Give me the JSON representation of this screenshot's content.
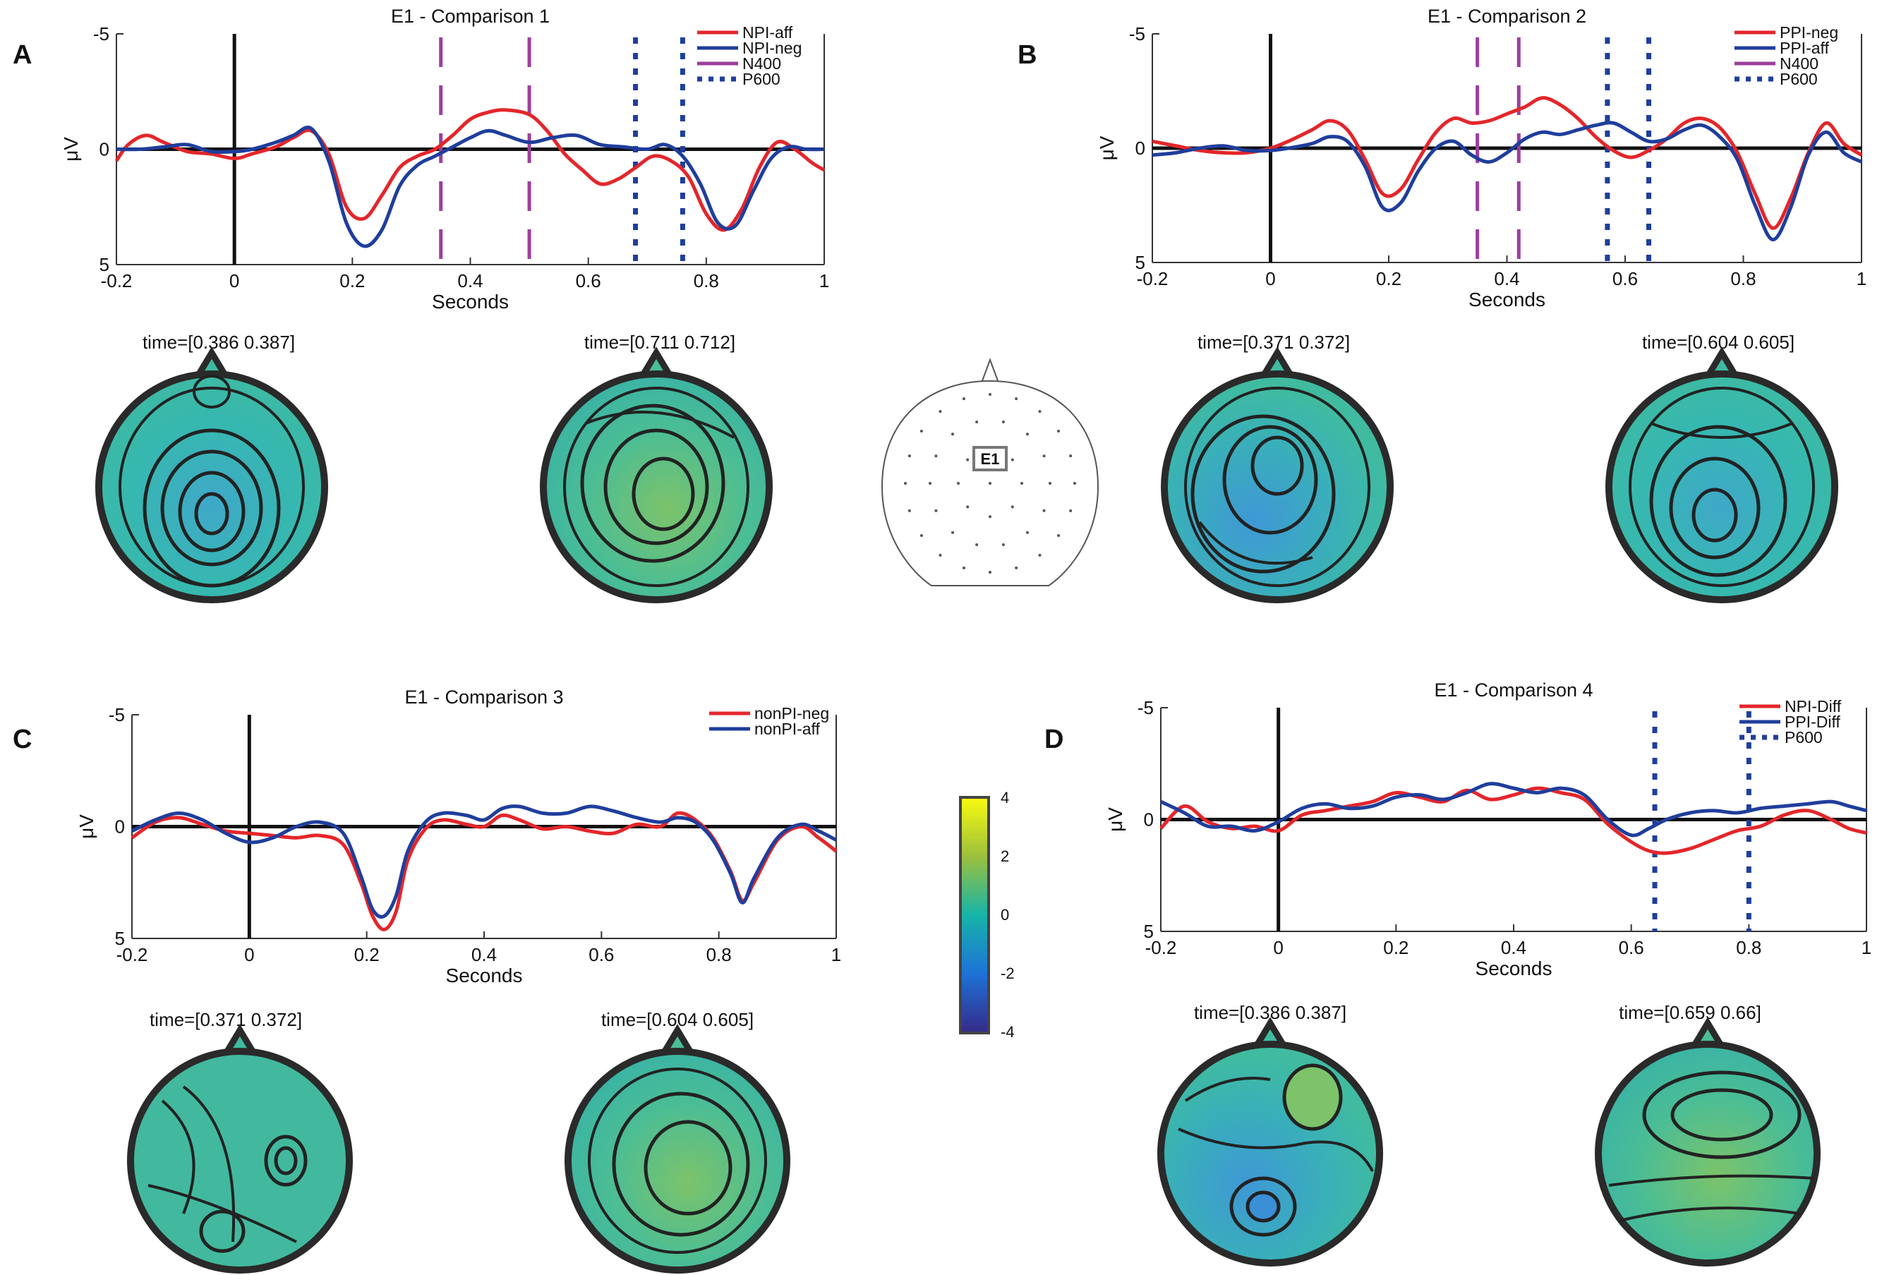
{
  "chart_data": [
    {
      "type": "line",
      "panel_label": "A",
      "title": "E1 - Comparison 1",
      "xlabel": "Seconds",
      "ylabel": "μV",
      "xlim": [
        -0.2,
        1
      ],
      "ylim": [
        -5,
        5
      ],
      "y_reversed": true,
      "x_ticks": [
        "-0.2",
        "0",
        "0.2",
        "0.4",
        "0.6",
        "0.8",
        "1"
      ],
      "y_ticks": [
        "-5",
        "0",
        "5"
      ],
      "legend": [
        "NPI-aff",
        "NPI-neg",
        "N400",
        "P600"
      ],
      "legend_position": "top-right",
      "series": [
        {
          "name": "NPI-aff",
          "color": "#e3262a",
          "x": [
            -0.2,
            -0.18,
            -0.15,
            -0.12,
            -0.08,
            -0.04,
            0,
            0.03,
            0.07,
            0.1,
            0.13,
            0.16,
            0.19,
            0.22,
            0.25,
            0.28,
            0.31,
            0.34,
            0.37,
            0.4,
            0.43,
            0.46,
            0.5,
            0.53,
            0.56,
            0.59,
            0.62,
            0.65,
            0.68,
            0.71,
            0.74,
            0.77,
            0.8,
            0.83,
            0.86,
            0.89,
            0.92,
            0.95,
            0.98,
            1
          ],
          "y": [
            0.5,
            -0.2,
            -0.6,
            -0.3,
            0.1,
            0.2,
            0.4,
            0.2,
            -0.1,
            -0.5,
            -0.8,
            0.2,
            2.5,
            3,
            2,
            0.8,
            0.3,
            0,
            -0.6,
            -1.3,
            -1.6,
            -1.7,
            -1.5,
            -0.8,
            0.2,
            0.9,
            1.5,
            1.3,
            0.8,
            0.3,
            0.5,
            1.2,
            2.8,
            3.5,
            2.6,
            0.8,
            -0.3,
            0,
            0.6,
            0.9
          ]
        },
        {
          "name": "NPI-neg",
          "color": "#1f3e9c",
          "x": [
            -0.2,
            -0.16,
            -0.12,
            -0.08,
            -0.04,
            0,
            0.03,
            0.07,
            0.1,
            0.13,
            0.16,
            0.19,
            0.22,
            0.25,
            0.28,
            0.31,
            0.34,
            0.37,
            0.4,
            0.43,
            0.46,
            0.5,
            0.54,
            0.58,
            0.62,
            0.66,
            0.7,
            0.73,
            0.76,
            0.79,
            0.82,
            0.85,
            0.88,
            0.91,
            0.94,
            0.97,
            1
          ],
          "y": [
            0,
            0,
            -0.1,
            -0.2,
            0.1,
            0.1,
            0,
            -0.3,
            -0.6,
            -0.9,
            0.5,
            3.2,
            4.2,
            3.5,
            1.6,
            0.7,
            0.3,
            -0.1,
            -0.5,
            -0.8,
            -0.6,
            -0.3,
            -0.5,
            -0.6,
            -0.2,
            -0.1,
            0,
            -0.2,
            0.3,
            1.5,
            3.2,
            3.3,
            1.8,
            0.4,
            -0.1,
            0,
            0
          ]
        }
      ],
      "vlines": [
        {
          "name": "N400",
          "style": "dashed",
          "color": "#9b3f9e",
          "x": [
            0.35,
            0.5
          ]
        },
        {
          "name": "P600",
          "style": "dotted",
          "color": "#1f3e9c",
          "x": [
            0.68,
            0.76
          ]
        }
      ],
      "topomaps": [
        {
          "time_label": "time=[0.386 0.387]"
        },
        {
          "time_label": "time=[0.711 0.712]"
        }
      ]
    },
    {
      "type": "line",
      "panel_label": "B",
      "title": "E1 - Comparison 2",
      "xlabel": "Seconds",
      "ylabel": "μV",
      "xlim": [
        -0.2,
        1
      ],
      "ylim": [
        -5,
        5
      ],
      "y_reversed": true,
      "x_ticks": [
        "-0.2",
        "0",
        "0.2",
        "0.4",
        "0.6",
        "0.8",
        "1"
      ],
      "y_ticks": [
        "-5",
        "0",
        "5"
      ],
      "legend": [
        "PPI-neg",
        "PPI-aff",
        "N400",
        "P600"
      ],
      "legend_position": "top-right",
      "series": [
        {
          "name": "PPI-neg",
          "color": "#e3262a",
          "x": [
            -0.2,
            -0.16,
            -0.12,
            -0.08,
            -0.04,
            0,
            0.03,
            0.07,
            0.1,
            0.13,
            0.16,
            0.19,
            0.22,
            0.25,
            0.28,
            0.31,
            0.34,
            0.37,
            0.4,
            0.43,
            0.46,
            0.49,
            0.52,
            0.55,
            0.58,
            0.61,
            0.64,
            0.67,
            0.7,
            0.73,
            0.76,
            0.79,
            0.82,
            0.85,
            0.88,
            0.91,
            0.94,
            0.97,
            1
          ],
          "y": [
            -0.3,
            -0.1,
            0.1,
            0.2,
            0.2,
            0,
            -0.3,
            -0.8,
            -1.2,
            -0.8,
            0.5,
            2,
            1.8,
            0.5,
            -0.7,
            -1.3,
            -1.1,
            -1.2,
            -1.5,
            -1.8,
            -2.2,
            -1.9,
            -1.3,
            -0.5,
            0.1,
            0.4,
            0.1,
            -0.4,
            -1.1,
            -1.3,
            -0.9,
            0.2,
            2,
            3.5,
            2.2,
            0.2,
            -1.1,
            -0.2,
            0.3
          ]
        },
        {
          "name": "PPI-aff",
          "color": "#1f3e9c",
          "x": [
            -0.2,
            -0.16,
            -0.12,
            -0.08,
            -0.04,
            0,
            0.03,
            0.07,
            0.1,
            0.13,
            0.16,
            0.19,
            0.22,
            0.25,
            0.28,
            0.31,
            0.34,
            0.37,
            0.4,
            0.43,
            0.46,
            0.49,
            0.52,
            0.55,
            0.58,
            0.61,
            0.64,
            0.67,
            0.7,
            0.73,
            0.76,
            0.79,
            0.82,
            0.85,
            0.88,
            0.91,
            0.94,
            0.97,
            1
          ],
          "y": [
            0.3,
            0.2,
            0,
            -0.1,
            0.1,
            0.1,
            0,
            -0.2,
            -0.5,
            -0.3,
            0.8,
            2.6,
            2.4,
            1,
            0,
            -0.3,
            0.3,
            0.6,
            0.2,
            -0.4,
            -0.7,
            -0.6,
            -0.8,
            -1,
            -1.1,
            -0.7,
            -0.3,
            -0.4,
            -0.8,
            -1,
            -0.5,
            0.5,
            2.5,
            4,
            2.6,
            0.3,
            -0.7,
            0.2,
            0.6
          ]
        }
      ],
      "vlines": [
        {
          "name": "N400",
          "style": "dashed",
          "color": "#9b3f9e",
          "x": [
            0.35,
            0.42
          ]
        },
        {
          "name": "P600",
          "style": "dotted",
          "color": "#1f3e9c",
          "x": [
            0.57,
            0.64
          ]
        }
      ],
      "topomaps": [
        {
          "time_label": "time=[0.371 0.372]"
        },
        {
          "time_label": "time=[0.604 0.605]"
        }
      ]
    },
    {
      "type": "line",
      "panel_label": "C",
      "title": "E1 - Comparison 3",
      "xlabel": "Seconds",
      "ylabel": "μV",
      "xlim": [
        -0.2,
        1
      ],
      "ylim": [
        -5,
        5
      ],
      "y_reversed": true,
      "x_ticks": [
        "-0.2",
        "0",
        "0.2",
        "0.4",
        "0.6",
        "0.8",
        "1"
      ],
      "y_ticks": [
        "-5",
        "0",
        "5"
      ],
      "legend": [
        "nonPI-neg",
        "nonPI-aff"
      ],
      "legend_position": "top-right",
      "series": [
        {
          "name": "nonPI-neg",
          "color": "#e3262a",
          "x": [
            -0.2,
            -0.16,
            -0.12,
            -0.08,
            -0.04,
            0,
            0.04,
            0.08,
            0.12,
            0.16,
            0.19,
            0.21,
            0.23,
            0.25,
            0.27,
            0.3,
            0.33,
            0.37,
            0.4,
            0.43,
            0.46,
            0.5,
            0.54,
            0.58,
            0.62,
            0.66,
            0.7,
            0.73,
            0.76,
            0.79,
            0.82,
            0.84,
            0.86,
            0.9,
            0.94,
            0.97,
            1
          ],
          "y": [
            0.5,
            -0.2,
            -0.4,
            -0.1,
            0.2,
            0.3,
            0.4,
            0.5,
            0.4,
            0.8,
            2.5,
            4,
            4.6,
            3.8,
            1.5,
            0.1,
            -0.3,
            -0.1,
            0,
            -0.5,
            -0.3,
            0.1,
            0,
            0.2,
            0.3,
            -0.1,
            0,
            -0.6,
            -0.3,
            0.5,
            2,
            3.3,
            2.5,
            0.6,
            0,
            0.5,
            1.1
          ]
        },
        {
          "name": "nonPI-aff",
          "color": "#1f3e9c",
          "x": [
            -0.2,
            -0.16,
            -0.12,
            -0.08,
            -0.04,
            0,
            0.04,
            0.08,
            0.12,
            0.16,
            0.19,
            0.21,
            0.23,
            0.25,
            0.27,
            0.3,
            0.33,
            0.37,
            0.4,
            0.43,
            0.46,
            0.5,
            0.54,
            0.58,
            0.62,
            0.66,
            0.7,
            0.73,
            0.76,
            0.79,
            0.82,
            0.84,
            0.86,
            0.9,
            0.94,
            0.97,
            1
          ],
          "y": [
            0.2,
            -0.3,
            -0.6,
            -0.3,
            0.3,
            0.7,
            0.5,
            0,
            -0.2,
            0.3,
            2.2,
            3.7,
            4,
            3.1,
            1.1,
            -0.2,
            -0.6,
            -0.5,
            -0.3,
            -0.8,
            -0.9,
            -0.6,
            -0.6,
            -0.9,
            -0.7,
            -0.4,
            -0.2,
            -0.4,
            -0.2,
            0.6,
            2.1,
            3.4,
            2.3,
            0.5,
            -0.1,
            0.2,
            0.6
          ]
        }
      ],
      "vlines": [],
      "topomaps": [
        {
          "time_label": "time=[0.371 0.372]"
        },
        {
          "time_label": "time=[0.604 0.605]"
        }
      ]
    },
    {
      "type": "line",
      "panel_label": "D",
      "title": "E1 - Comparison 4",
      "xlabel": "Seconds",
      "ylabel": "μV",
      "xlim": [
        -0.2,
        1
      ],
      "ylim": [
        -5,
        5
      ],
      "y_reversed": true,
      "x_ticks": [
        "-0.2",
        "0",
        "0.2",
        "0.4",
        "0.6",
        "0.8",
        "1"
      ],
      "y_ticks": [
        "-5",
        "0",
        "5"
      ],
      "legend": [
        "NPI-Diff",
        "PPI-Diff",
        "P600"
      ],
      "legend_position": "top-right",
      "series": [
        {
          "name": "NPI-Diff",
          "color": "#e3262a",
          "x": [
            -0.2,
            -0.16,
            -0.12,
            -0.08,
            -0.04,
            0,
            0.04,
            0.08,
            0.12,
            0.16,
            0.2,
            0.24,
            0.28,
            0.32,
            0.36,
            0.4,
            0.44,
            0.48,
            0.52,
            0.56,
            0.6,
            0.63,
            0.66,
            0.7,
            0.74,
            0.78,
            0.82,
            0.86,
            0.9,
            0.94,
            0.97,
            1
          ],
          "y": [
            0.4,
            -0.6,
            0.1,
            0.4,
            0.3,
            0.5,
            -0.2,
            -0.4,
            -0.6,
            -0.8,
            -1.2,
            -1,
            -0.8,
            -1.3,
            -0.9,
            -1.1,
            -1.4,
            -1.2,
            -0.9,
            0.2,
            1,
            1.4,
            1.5,
            1.3,
            0.9,
            0.5,
            0.3,
            -0.2,
            -0.4,
            0,
            0.4,
            0.6
          ]
        },
        {
          "name": "PPI-Diff",
          "color": "#1f3e9c",
          "x": [
            -0.2,
            -0.16,
            -0.12,
            -0.08,
            -0.04,
            0,
            0.04,
            0.08,
            0.12,
            0.16,
            0.2,
            0.24,
            0.28,
            0.32,
            0.36,
            0.4,
            0.44,
            0.48,
            0.52,
            0.56,
            0.6,
            0.63,
            0.66,
            0.7,
            0.74,
            0.78,
            0.82,
            0.86,
            0.9,
            0.94,
            0.97,
            1
          ],
          "y": [
            -0.8,
            -0.3,
            0.3,
            0.3,
            0.5,
            0.1,
            -0.5,
            -0.7,
            -0.5,
            -0.6,
            -1,
            -1.1,
            -0.9,
            -1.2,
            -1.6,
            -1.4,
            -1.2,
            -1.4,
            -1.1,
            0,
            0.7,
            0.4,
            0,
            -0.3,
            -0.4,
            -0.3,
            -0.5,
            -0.6,
            -0.7,
            -0.8,
            -0.6,
            -0.4
          ]
        }
      ],
      "vlines": [
        {
          "name": "P600",
          "style": "dotted",
          "color": "#1f3e9c",
          "x": [
            0.64,
            0.8
          ]
        }
      ],
      "topomaps": [
        {
          "time_label": "time=[0.386 0.387]"
        },
        {
          "time_label": "time=[0.659 0.66]"
        }
      ]
    }
  ],
  "electrode_map": {
    "label": "E1"
  },
  "colorbar": {
    "ticks": [
      "4",
      "2",
      "0",
      "-2",
      "-4"
    ],
    "range": [
      -4,
      4
    ]
  }
}
